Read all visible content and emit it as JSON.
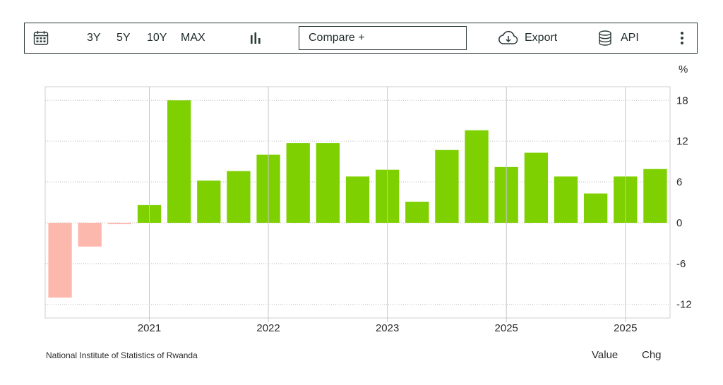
{
  "toolbar": {
    "ranges": [
      "3Y",
      "5Y",
      "10Y",
      "MAX"
    ],
    "compare_label": "Compare +",
    "export_label": "Export",
    "api_label": "API",
    "icons": {
      "calendar": "calendar-icon",
      "chart_type": "bar-chart-icon",
      "export": "cloud-download-icon",
      "api": "database-icon",
      "more": "more-vertical-icon"
    }
  },
  "chart_data": {
    "type": "bar",
    "unit": "%",
    "ylim": [
      -14,
      20
    ],
    "yticks": [
      18,
      12,
      6,
      0,
      -6,
      -12
    ],
    "grid": true,
    "x_tick_labels": [
      "2021",
      "2022",
      "2023",
      "2025",
      "2025"
    ],
    "values": [
      -11,
      -3.5,
      -0.2,
      2.6,
      18,
      6.2,
      7.6,
      10,
      11.7,
      11.7,
      6.8,
      7.8,
      3.1,
      10.7,
      13.6,
      8.2,
      10.3,
      6.8,
      4.3,
      6.8,
      7.9
    ],
    "positive_color": "#7ed000",
    "negative_color": "#fdb8ae"
  },
  "footer": {
    "source": "National Institute of Statistics of Rwanda",
    "value_label": "Value",
    "chg_label": "Chg"
  }
}
